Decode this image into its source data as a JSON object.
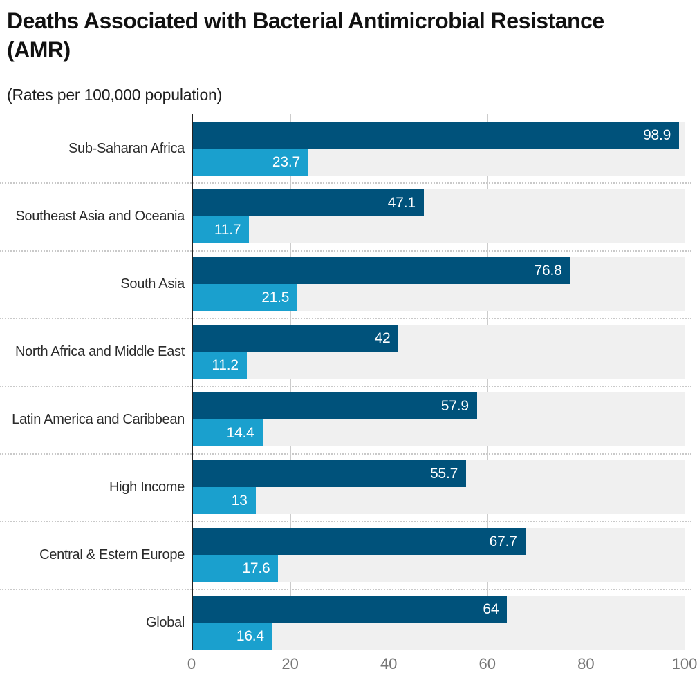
{
  "title": "Deaths Associated with Bacterial Antimicrobial Resistance (AMR)",
  "title_lines": [
    "Deaths Associated with Bacterial Antimicrobial Resistance",
    "(AMR)"
  ],
  "subtitle": "(Rates per 100,000 population)",
  "chart_data": {
    "type": "bar",
    "orientation": "horizontal",
    "title": "Deaths Associated with Bacterial Antimicrobial Resistance (AMR)",
    "subtitle": "(Rates per 100,000 population)",
    "categories": [
      "Sub-Saharan Africa",
      "Southeast Asia and Oceania",
      "South Asia",
      "North Africa and Middle East",
      "Latin America and Caribbean",
      "High Income",
      "Central & Estern Europe",
      "Global"
    ],
    "series": [
      {
        "name": "dark-blue",
        "color": "#00527b",
        "values": [
          98.9,
          47.1,
          76.8,
          42,
          57.9,
          55.7,
          67.7,
          64
        ]
      },
      {
        "name": "light-blue",
        "color": "#1aa0ce",
        "values": [
          23.7,
          11.7,
          21.5,
          11.2,
          14.4,
          13,
          17.6,
          16.4
        ]
      }
    ],
    "xlim": [
      0,
      100
    ],
    "x_ticks": [
      0,
      20,
      40,
      60,
      80,
      100
    ],
    "grid": true,
    "legend": false
  },
  "colors": {
    "band": "#f0f0f0",
    "gridline": "#cccccc",
    "axis_line": "#222222",
    "tick_label": "#757575",
    "value_label": "#ffffff",
    "separator": "#c9c9c9"
  }
}
